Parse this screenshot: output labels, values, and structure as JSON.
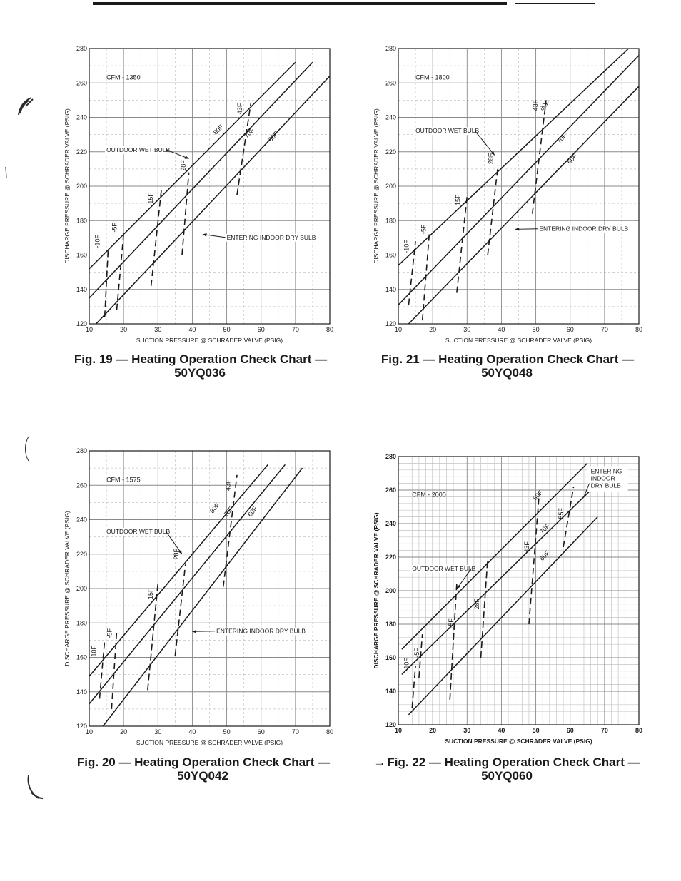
{
  "captions": [
    {
      "line1": "Fig. 19 — Heating Operation Check Chart —",
      "line2": "50YQ036",
      "arrow": ""
    },
    {
      "line1": "Fig. 21 — Heating Operation Check Chart —",
      "line2": "50YQ048",
      "arrow": ""
    },
    {
      "line1": "Fig. 20 — Heating Operation Check Chart —",
      "line2": "50YQ042",
      "arrow": ""
    },
    {
      "line1": "Fig. 22 — Heating Operation Check Chart —",
      "line2": "50YQ060",
      "arrow": "→"
    }
  ],
  "colors": {
    "ink": "#1a1a1a",
    "grid_major": "#8a8a8a",
    "grid_minor": "#c4c4c4"
  },
  "chart_data": [
    {
      "type": "line",
      "title": "Fig. 19 — Heating Operation Check Chart — 50YQ036",
      "xlabel": "SUCTION PRESSURE @ SCHRADER VALVE (PSIG)",
      "ylabel": "DISCHARGE PRESSURE @ SCHRADER VALVE (PSIG)",
      "xlim": [
        10,
        80
      ],
      "ylim": [
        120,
        280
      ],
      "xticks": [
        "10",
        "20",
        "30",
        "40",
        "50",
        "60",
        "70",
        "80"
      ],
      "yticks": [
        "120",
        "140",
        "160",
        "180",
        "200",
        "220",
        "240",
        "260",
        "280"
      ],
      "grid": true,
      "minor_grid": false,
      "cfm_label": "CFM - 1350",
      "cfm_pos": [
        15,
        262
      ],
      "series": [
        {
          "name": "80F",
          "x": [
            10,
            70
          ],
          "y": [
            152,
            272
          ],
          "label_at": [
            48,
            232
          ]
        },
        {
          "name": "70F",
          "x": [
            10,
            75
          ],
          "y": [
            135,
            272
          ],
          "label_at": [
            57,
            230
          ]
        },
        {
          "name": "60F",
          "x": [
            12,
            80
          ],
          "y": [
            120,
            264
          ],
          "label_at": [
            64,
            228
          ]
        }
      ],
      "wet_bulb": [
        {
          "name": "-10F",
          "x": [
            14.5,
            15.5
          ],
          "y": [
            124,
            163
          ],
          "label_at": [
            13,
            168
          ]
        },
        {
          "name": "-5F",
          "x": [
            18,
            20
          ],
          "y": [
            128,
            172
          ],
          "label_at": [
            18,
            176
          ]
        },
        {
          "name": "15F",
          "x": [
            28,
            31
          ],
          "y": [
            142,
            198
          ],
          "label_at": [
            28.5,
            193
          ]
        },
        {
          "name": "28F",
          "x": [
            37,
            39
          ],
          "y": [
            160,
            208
          ],
          "label_at": [
            38,
            212
          ]
        },
        {
          "name": "43F",
          "x": [
            53,
            57
          ],
          "y": [
            195,
            248
          ],
          "label_at": [
            54.5,
            245
          ]
        }
      ],
      "annotations": [
        {
          "text": "OUTDOOR WET BULB",
          "at": [
            15,
            220
          ],
          "arrow_to": [
            39,
            216
          ]
        },
        {
          "text": "ENTERING INDOOR DRY BULB",
          "at": [
            50,
            169
          ],
          "arrow_to": [
            43,
            172
          ]
        }
      ]
    },
    {
      "type": "line",
      "title": "Fig. 21 — Heating Operation Check Chart — 50YQ048",
      "xlabel": "SUCTION PRESSURE @ SCHRADER VALVE (PSIG)",
      "ylabel": "DISCHARGE PRESSURE @ SCHRADER VALVE (PSIG)",
      "xlim": [
        10,
        80
      ],
      "ylim": [
        120,
        280
      ],
      "xticks": [
        "10",
        "20",
        "30",
        "40",
        "50",
        "60",
        "70",
        "80"
      ],
      "yticks": [
        "120",
        "140",
        "160",
        "180",
        "200",
        "220",
        "240",
        "260",
        "280"
      ],
      "grid": true,
      "minor_grid": false,
      "cfm_label": "CFM - 1800",
      "cfm_pos": [
        15,
        262
      ],
      "series": [
        {
          "name": "80F",
          "x": [
            10,
            77
          ],
          "y": [
            154,
            280
          ],
          "label_at": [
            53,
            246
          ]
        },
        {
          "name": "70F",
          "x": [
            10,
            80
          ],
          "y": [
            131,
            276
          ],
          "label_at": [
            58,
            227
          ]
        },
        {
          "name": "60F",
          "x": [
            13,
            80
          ],
          "y": [
            120,
            258
          ],
          "label_at": [
            61,
            215
          ]
        }
      ],
      "wet_bulb": [
        {
          "name": "-10F",
          "x": [
            13,
            15
          ],
          "y": [
            131,
            168
          ],
          "label_at": [
            13,
            165
          ]
        },
        {
          "name": "-5F",
          "x": [
            17,
            19
          ],
          "y": [
            122,
            172
          ],
          "label_at": [
            18,
            175
          ]
        },
        {
          "name": "15F",
          "x": [
            27,
            30
          ],
          "y": [
            138,
            194
          ],
          "label_at": [
            28,
            192
          ]
        },
        {
          "name": "28F",
          "x": [
            36,
            39
          ],
          "y": [
            160,
            212
          ],
          "label_at": [
            37.5,
            216
          ]
        },
        {
          "name": "43F",
          "x": [
            49,
            53
          ],
          "y": [
            184,
            250
          ],
          "label_at": [
            50.5,
            247
          ]
        }
      ],
      "annotations": [
        {
          "text": "OUTDOOR WET BULB",
          "at": [
            15,
            231
          ],
          "arrow_to": [
            38,
            218
          ]
        },
        {
          "text": "ENTERING INDOOR DRY BULB",
          "at": [
            51,
            174
          ],
          "arrow_to": [
            44,
            175
          ]
        }
      ]
    },
    {
      "type": "line",
      "title": "Fig. 20 — Heating Operation Check Chart — 50YQ042",
      "xlabel": "SUCTION PRESSURE @ SCHRADER VALVE (PSIG)",
      "ylabel": "DISCHARGE PRESSURE @ SCHRADER VALVE (PSIG)",
      "xlim": [
        10,
        80
      ],
      "ylim": [
        120,
        280
      ],
      "xticks": [
        "10",
        "20",
        "30",
        "40",
        "50",
        "60",
        "70",
        "80"
      ],
      "yticks": [
        "120",
        "140",
        "160",
        "180",
        "200",
        "220",
        "240",
        "260",
        "280"
      ],
      "grid": true,
      "minor_grid": false,
      "cfm_label": "CFM - 1575",
      "cfm_pos": [
        15,
        262
      ],
      "series": [
        {
          "name": "80F",
          "x": [
            10,
            62
          ],
          "y": [
            149,
            272
          ],
          "label_at": [
            47,
            246
          ]
        },
        {
          "name": "70F",
          "x": [
            10,
            67
          ],
          "y": [
            133,
            272
          ],
          "label_at": [
            51,
            244
          ]
        },
        {
          "name": "60F",
          "x": [
            14,
            72
          ],
          "y": [
            120,
            270
          ],
          "label_at": [
            58,
            244
          ]
        }
      ],
      "wet_bulb": [
        {
          "name": "-10F",
          "x": [
            13,
            14.5
          ],
          "y": [
            136,
            170
          ],
          "label_at": [
            12,
            163
          ]
        },
        {
          "name": "-5F",
          "x": [
            16.5,
            18
          ],
          "y": [
            130,
            175
          ],
          "label_at": [
            16.5,
            174
          ]
        },
        {
          "name": "15F",
          "x": [
            27,
            30
          ],
          "y": [
            141,
            203
          ],
          "label_at": [
            28.5,
            197
          ]
        },
        {
          "name": "28F",
          "x": [
            35,
            38
          ],
          "y": [
            161,
            214
          ],
          "label_at": [
            36,
            220
          ]
        },
        {
          "name": "43F",
          "x": [
            49,
            53
          ],
          "y": [
            201,
            266
          ],
          "label_at": [
            51,
            260
          ]
        }
      ],
      "annotations": [
        {
          "text": "OUTDOOR WET BULB",
          "at": [
            15,
            232
          ],
          "arrow_to": [
            37,
            220
          ]
        },
        {
          "text": "ENTERING INDOOR DRY BULB",
          "at": [
            47,
            174
          ],
          "arrow_to": [
            40,
            175
          ]
        }
      ]
    },
    {
      "type": "line",
      "title": "Fig. 22 — Heating Operation Check Chart — 50YQ060",
      "xlabel": "SUCTION PRESSURE @ SCHRADER VALVE (PSIG)",
      "ylabel": "DISCHARGE PRESSURE @ SCHRADER VALVE (PSIG)",
      "xlim": [
        10,
        80
      ],
      "ylim": [
        120,
        280
      ],
      "xticks": [
        "10",
        "20",
        "30",
        "40",
        "50",
        "60",
        "70",
        "80"
      ],
      "yticks": [
        "120",
        "140",
        "160",
        "180",
        "200",
        "220",
        "240",
        "260",
        "280"
      ],
      "grid": true,
      "minor_grid": true,
      "cfm_label": "CFM - 2000",
      "cfm_pos": [
        14,
        256
      ],
      "series": [
        {
          "name": "80F",
          "x": [
            11,
            65
          ],
          "y": [
            165,
            276
          ],
          "label_at": [
            51,
            256
          ]
        },
        {
          "name": "70F",
          "x": [
            11,
            67
          ],
          "y": [
            150,
            262
          ],
          "label_at": [
            53,
            236
          ]
        },
        {
          "name": "60F",
          "x": [
            13,
            68
          ],
          "y": [
            126,
            244
          ],
          "label_at": [
            53,
            220
          ]
        }
      ],
      "wet_bulb": [
        {
          "name": "-10F",
          "x": [
            14,
            15
          ],
          "y": [
            130,
            155
          ],
          "label_at": [
            13,
            156
          ]
        },
        {
          "name": "-5F",
          "x": [
            16,
            17
          ],
          "y": [
            148,
            174
          ],
          "label_at": [
            16,
            163
          ]
        },
        {
          "name": "15F",
          "x": [
            25,
            27
          ],
          "y": [
            135,
            204
          ],
          "label_at": [
            26,
            180
          ]
        },
        {
          "name": "28F",
          "x": [
            34,
            36
          ],
          "y": [
            160,
            219
          ],
          "label_at": [
            33.5,
            192
          ]
        },
        {
          "name": "43F",
          "x": [
            48,
            51
          ],
          "y": [
            180,
            258
          ],
          "label_at": [
            48,
            226
          ]
        },
        {
          "name": "55F",
          "x": [
            58,
            61
          ],
          "y": [
            226,
            262
          ],
          "label_at": [
            58,
            246
          ]
        }
      ],
      "annotations": [
        {
          "text": "OUTDOOR WET BULB",
          "at": [
            14,
            212
          ],
          "arrow_to": [
            27,
            201
          ]
        },
        {
          "text": "ENTERING INDOOR DRY BULB",
          "at": [
            66,
            270
          ],
          "arrow_to": [
            64,
            256
          ],
          "multiline": true
        }
      ]
    }
  ]
}
